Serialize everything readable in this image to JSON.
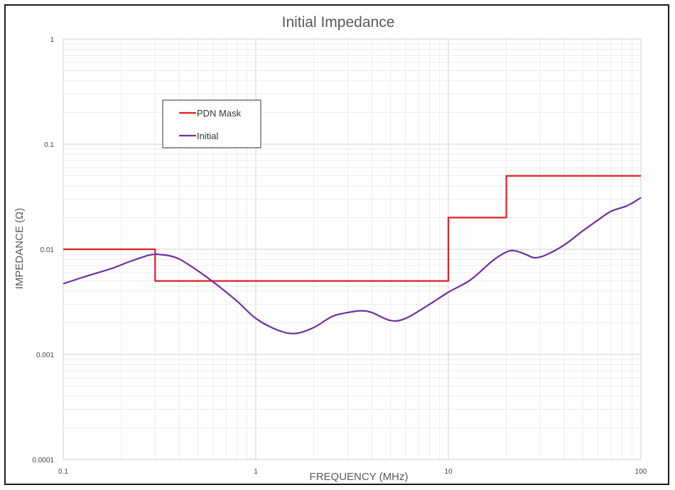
{
  "chart_data": {
    "type": "line",
    "title": "Initial Impedance",
    "xlabel": "FREQUENCY (MHz)",
    "ylabel": "IMPEDANCE (Ω)",
    "xscale": "log",
    "yscale": "log",
    "xlim": [
      0.1,
      100
    ],
    "ylim": [
      0.0001,
      1
    ],
    "x_ticks": [
      "0.1",
      "1",
      "10",
      "100"
    ],
    "y_ticks": [
      "0.0001",
      "0.001",
      "0.01",
      "0.1",
      "1"
    ],
    "grid": true,
    "legend_position": "upper-left",
    "series": [
      {
        "name": "PDN Mask",
        "color": "#e02020",
        "step": true,
        "points": [
          [
            0.1,
            0.01
          ],
          [
            0.3,
            0.01
          ],
          [
            0.3,
            0.005
          ],
          [
            10,
            0.005
          ],
          [
            10,
            0.02
          ],
          [
            20,
            0.02
          ],
          [
            20,
            0.05
          ],
          [
            100,
            0.05
          ]
        ]
      },
      {
        "name": "Initial",
        "color": "#7030a0",
        "points": [
          [
            0.1,
            0.0047
          ],
          [
            0.13,
            0.0055
          ],
          [
            0.18,
            0.0066
          ],
          [
            0.22,
            0.0076
          ],
          [
            0.28,
            0.0088
          ],
          [
            0.32,
            0.0089
          ],
          [
            0.38,
            0.0084
          ],
          [
            0.45,
            0.0071
          ],
          [
            0.6,
            0.0049
          ],
          [
            0.8,
            0.0032
          ],
          [
            1.0,
            0.0022
          ],
          [
            1.3,
            0.0017
          ],
          [
            1.6,
            0.00158
          ],
          [
            2.0,
            0.0018
          ],
          [
            2.5,
            0.0023
          ],
          [
            3.0,
            0.0025
          ],
          [
            3.5,
            0.0026
          ],
          [
            4.0,
            0.0025
          ],
          [
            5.0,
            0.0021
          ],
          [
            6.0,
            0.0022
          ],
          [
            8.0,
            0.003
          ],
          [
            10,
            0.0039
          ],
          [
            13,
            0.0051
          ],
          [
            17,
            0.0078
          ],
          [
            20,
            0.0094
          ],
          [
            22,
            0.0097
          ],
          [
            25,
            0.009
          ],
          [
            28,
            0.0083
          ],
          [
            32,
            0.0088
          ],
          [
            40,
            0.011
          ],
          [
            50,
            0.015
          ],
          [
            60,
            0.019
          ],
          [
            70,
            0.023
          ],
          [
            85,
            0.026
          ],
          [
            100,
            0.031
          ]
        ]
      }
    ]
  }
}
